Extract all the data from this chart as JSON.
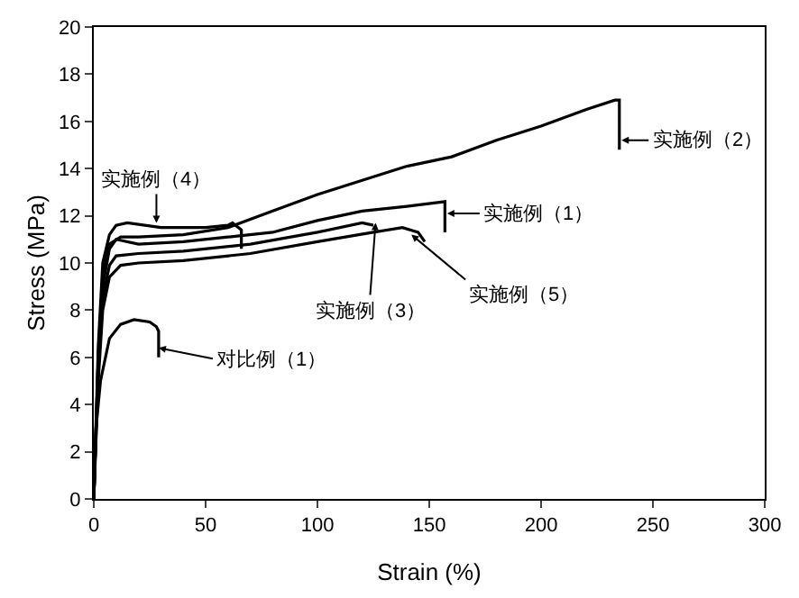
{
  "chart_data": {
    "type": "line",
    "xlabel": "Strain (%)",
    "ylabel": "Stress (MPa)",
    "xlim": [
      0,
      300
    ],
    "ylim": [
      0,
      20
    ],
    "xticks": [
      0,
      50,
      100,
      150,
      200,
      250,
      300
    ],
    "yticks": [
      0,
      2,
      4,
      6,
      8,
      10,
      12,
      14,
      16,
      18,
      20
    ],
    "marker": "none",
    "line_style": "solid",
    "series": [
      {
        "color": "#000000",
        "x": [
          0,
          2,
          4,
          7,
          10,
          20,
          40,
          60,
          80,
          100,
          120,
          140,
          157,
          157
        ],
        "values": [
          0,
          6,
          9,
          10.6,
          11.0,
          10.8,
          10.9,
          11.1,
          11.3,
          11.8,
          12.2,
          12.4,
          12.6,
          11.3
        ]
      },
      {
        "color": "#000000",
        "x": [
          0,
          2,
          4,
          7,
          12,
          20,
          40,
          60,
          80,
          100,
          120,
          140,
          160,
          180,
          200,
          220,
          233,
          235,
          235
        ],
        "values": [
          0,
          6,
          9.5,
          10.8,
          11.1,
          11.1,
          11.2,
          11.5,
          12.2,
          12.9,
          13.5,
          14.1,
          14.5,
          15.2,
          15.8,
          16.5,
          16.9,
          16.9,
          14.8
        ]
      },
      {
        "color": "#000000",
        "x": [
          0,
          2,
          4,
          7,
          10,
          20,
          40,
          70,
          100,
          120,
          125
        ],
        "values": [
          0,
          5.5,
          8.5,
          9.9,
          10.3,
          10.4,
          10.5,
          10.8,
          11.3,
          11.7,
          11.6
        ]
      },
      {
        "color": "#000000",
        "x": [
          0,
          2,
          4,
          7,
          10,
          15,
          30,
          50,
          60,
          62,
          66,
          66
        ],
        "values": [
          0,
          6.5,
          10,
          11.2,
          11.6,
          11.7,
          11.5,
          11.5,
          11.6,
          11.7,
          11.4,
          10.6
        ]
      },
      {
        "color": "#000000",
        "x": [
          0,
          2,
          4,
          7,
          12,
          20,
          40,
          70,
          100,
          125,
          138,
          145,
          148
        ],
        "values": [
          0,
          5,
          8,
          9.4,
          9.9,
          10.0,
          10.1,
          10.4,
          10.9,
          11.3,
          11.5,
          11.3,
          10.9
        ]
      },
      {
        "color": "#000000",
        "x": [
          0,
          1,
          3,
          7,
          12,
          18,
          25,
          28,
          29,
          29
        ],
        "values": [
          0,
          3,
          5,
          6.8,
          7.4,
          7.6,
          7.5,
          7.3,
          7.1,
          6.0
        ]
      }
    ],
    "annotations": [
      {
        "text": "实施例（1）",
        "x": 158,
        "y": 12.1
      },
      {
        "text": "实施例（2）",
        "x": 236,
        "y": 15.2
      },
      {
        "text": "实施例（3）",
        "x": 126,
        "y": 11.7
      },
      {
        "text": "实施例（4）",
        "x": 28,
        "y": 11.7
      },
      {
        "text": "实施例（5）",
        "x": 142,
        "y": 11.2
      },
      {
        "text": "对比例（1）",
        "x": 29,
        "y": 6.4
      }
    ]
  }
}
